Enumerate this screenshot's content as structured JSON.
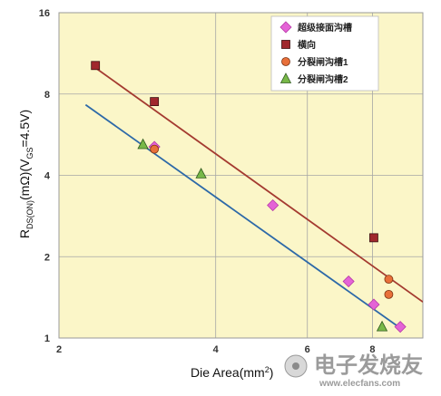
{
  "chart_data": {
    "type": "scatter",
    "x_scale": "log",
    "y_scale": "log",
    "xlim": [
      2,
      10
    ],
    "ylim": [
      1,
      16
    ],
    "x_ticks": [
      "2",
      "4",
      "6",
      "8"
    ],
    "y_ticks": [
      "1",
      "2",
      "4",
      "8",
      "16"
    ],
    "xlabel": {
      "main": "Die Area(mm",
      "sup": "2",
      "tail": ")"
    },
    "ylabel": {
      "r": "R",
      "r_sub": "DS(ON)",
      "mid": "(mΩ)(V",
      "v_sub": "GS",
      "tail": "=4.5V)"
    },
    "grid": true,
    "legend_position": "top-right",
    "background": "#fbf6c8",
    "series": [
      {
        "name": "超级接面沟槽",
        "marker": "diamond",
        "color": "#e463d6",
        "x": [
          3.05,
          5.15,
          7.2,
          8.05,
          9.05
        ],
        "y": [
          5.1,
          3.1,
          1.62,
          1.33,
          1.1
        ]
      },
      {
        "name": "横向",
        "marker": "square",
        "color": "#a0282d",
        "x": [
          2.35,
          3.05,
          8.05
        ],
        "y": [
          10.2,
          7.5,
          2.35
        ]
      },
      {
        "name": "分裂闸沟槽1",
        "marker": "circle",
        "color": "#e8703a",
        "x": [
          3.05,
          8.6,
          8.6
        ],
        "y": [
          5.0,
          1.65,
          1.45
        ]
      },
      {
        "name": "分裂闸沟槽2",
        "marker": "triangle",
        "color": "#78b848",
        "x": [
          2.9,
          3.75,
          8.35
        ],
        "y": [
          5.2,
          4.05,
          1.1
        ]
      }
    ],
    "trendlines": [
      {
        "series": "横向",
        "color": "#a43a30",
        "x": [
          2.35,
          10
        ],
        "y": [
          10.0,
          1.36
        ]
      },
      {
        "series": "超级接面沟槽",
        "color": "#2d69a8",
        "x": [
          2.25,
          9.1
        ],
        "y": [
          7.3,
          1.08
        ]
      }
    ]
  },
  "watermark": {
    "main": "电子发烧友",
    "url": "www.elecfans.com"
  }
}
